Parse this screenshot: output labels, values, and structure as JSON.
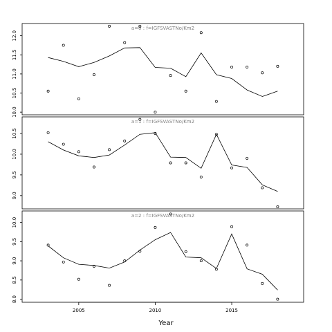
{
  "chart_data": {
    "type": "scatter",
    "xlabel": "Year",
    "xlim": [
      2001.3,
      2019.7
    ],
    "xticks": [
      2005,
      2010,
      2015
    ],
    "panels": [
      {
        "title": "a=0  :  f=IGFSVASTNo/Km2",
        "ylim": [
          9.93,
          12.32
        ],
        "yticks": [
          10.0,
          10.5,
          11.0,
          11.5,
          12.0
        ],
        "points": [
          {
            "x": 2003,
            "y": 10.55
          },
          {
            "x": 2004,
            "y": 11.75
          },
          {
            "x": 2005,
            "y": 10.35
          },
          {
            "x": 2006,
            "y": 10.98
          },
          {
            "x": 2007,
            "y": 12.25
          },
          {
            "x": 2008,
            "y": 11.82
          },
          {
            "x": 2009,
            "y": 12.25
          },
          {
            "x": 2010,
            "y": 10.0
          },
          {
            "x": 2011,
            "y": 10.96
          },
          {
            "x": 2012,
            "y": 10.55
          },
          {
            "x": 2013,
            "y": 12.08
          },
          {
            "x": 2014,
            "y": 10.28
          },
          {
            "x": 2015,
            "y": 11.18
          },
          {
            "x": 2016,
            "y": 11.18
          },
          {
            "x": 2017,
            "y": 11.03
          },
          {
            "x": 2018,
            "y": 11.2
          }
        ],
        "line": [
          {
            "x": 2003,
            "y": 11.43
          },
          {
            "x": 2004,
            "y": 11.33
          },
          {
            "x": 2005,
            "y": 11.19
          },
          {
            "x": 2006,
            "y": 11.3
          },
          {
            "x": 2007,
            "y": 11.47
          },
          {
            "x": 2008,
            "y": 11.68
          },
          {
            "x": 2009,
            "y": 11.69
          },
          {
            "x": 2010,
            "y": 11.17
          },
          {
            "x": 2011,
            "y": 11.15
          },
          {
            "x": 2012,
            "y": 10.93
          },
          {
            "x": 2013,
            "y": 11.55
          },
          {
            "x": 2014,
            "y": 10.98
          },
          {
            "x": 2015,
            "y": 10.88
          },
          {
            "x": 2016,
            "y": 10.58
          },
          {
            "x": 2017,
            "y": 10.41
          },
          {
            "x": 2018,
            "y": 10.55
          }
        ]
      },
      {
        "title": "a=1  :  f=IGFSVASTNo/Km2",
        "ylim": [
          8.68,
          10.9
        ],
        "yticks": [
          9.0,
          9.5,
          10.0,
          10.5
        ],
        "points": [
          {
            "x": 2003,
            "y": 10.52
          },
          {
            "x": 2004,
            "y": 10.24
          },
          {
            "x": 2005,
            "y": 10.06
          },
          {
            "x": 2006,
            "y": 9.69
          },
          {
            "x": 2007,
            "y": 10.11
          },
          {
            "x": 2008,
            "y": 10.32
          },
          {
            "x": 2009,
            "y": 10.84
          },
          {
            "x": 2010,
            "y": 10.5
          },
          {
            "x": 2011,
            "y": 9.79
          },
          {
            "x": 2012,
            "y": 9.79
          },
          {
            "x": 2013,
            "y": 9.45
          },
          {
            "x": 2014,
            "y": 10.48
          },
          {
            "x": 2015,
            "y": 9.67
          },
          {
            "x": 2016,
            "y": 9.9
          },
          {
            "x": 2017,
            "y": 9.19
          },
          {
            "x": 2018,
            "y": 8.73
          }
        ],
        "line": [
          {
            "x": 2003,
            "y": 10.3
          },
          {
            "x": 2004,
            "y": 10.1
          },
          {
            "x": 2005,
            "y": 9.96
          },
          {
            "x": 2006,
            "y": 9.92
          },
          {
            "x": 2007,
            "y": 9.98
          },
          {
            "x": 2008,
            "y": 10.22
          },
          {
            "x": 2009,
            "y": 10.48
          },
          {
            "x": 2010,
            "y": 10.52
          },
          {
            "x": 2011,
            "y": 9.93
          },
          {
            "x": 2012,
            "y": 9.92
          },
          {
            "x": 2013,
            "y": 9.66
          },
          {
            "x": 2014,
            "y": 10.48
          },
          {
            "x": 2015,
            "y": 9.74
          },
          {
            "x": 2016,
            "y": 9.68
          },
          {
            "x": 2017,
            "y": 9.26
          },
          {
            "x": 2018,
            "y": 9.1
          }
        ]
      },
      {
        "title": "a=2  :  f=IGFSVASTNo/Km2",
        "ylim": [
          7.92,
          10.3
        ],
        "yticks": [
          8.0,
          8.5,
          9.0,
          9.5,
          10.0
        ],
        "points": [
          {
            "x": 2003,
            "y": 9.41
          },
          {
            "x": 2004,
            "y": 8.97
          },
          {
            "x": 2005,
            "y": 8.52
          },
          {
            "x": 2006,
            "y": 8.86
          },
          {
            "x": 2007,
            "y": 8.36
          },
          {
            "x": 2008,
            "y": 9.0
          },
          {
            "x": 2009,
            "y": 9.25
          },
          {
            "x": 2010,
            "y": 9.87
          },
          {
            "x": 2011,
            "y": 10.22
          },
          {
            "x": 2012,
            "y": 9.24
          },
          {
            "x": 2013,
            "y": 9.0
          },
          {
            "x": 2014,
            "y": 8.78
          },
          {
            "x": 2015,
            "y": 9.89
          },
          {
            "x": 2016,
            "y": 9.41
          },
          {
            "x": 2017,
            "y": 8.41
          },
          {
            "x": 2018,
            "y": 8.0
          }
        ],
        "line": [
          {
            "x": 2003,
            "y": 9.39
          },
          {
            "x": 2004,
            "y": 9.08
          },
          {
            "x": 2005,
            "y": 8.91
          },
          {
            "x": 2006,
            "y": 8.88
          },
          {
            "x": 2007,
            "y": 8.81
          },
          {
            "x": 2008,
            "y": 8.97
          },
          {
            "x": 2009,
            "y": 9.28
          },
          {
            "x": 2010,
            "y": 9.55
          },
          {
            "x": 2011,
            "y": 9.74
          },
          {
            "x": 2012,
            "y": 9.1
          },
          {
            "x": 2013,
            "y": 9.08
          },
          {
            "x": 2014,
            "y": 8.8
          },
          {
            "x": 2015,
            "y": 9.7
          },
          {
            "x": 2016,
            "y": 8.79
          },
          {
            "x": 2017,
            "y": 8.65
          },
          {
            "x": 2018,
            "y": 8.24
          }
        ]
      }
    ]
  }
}
